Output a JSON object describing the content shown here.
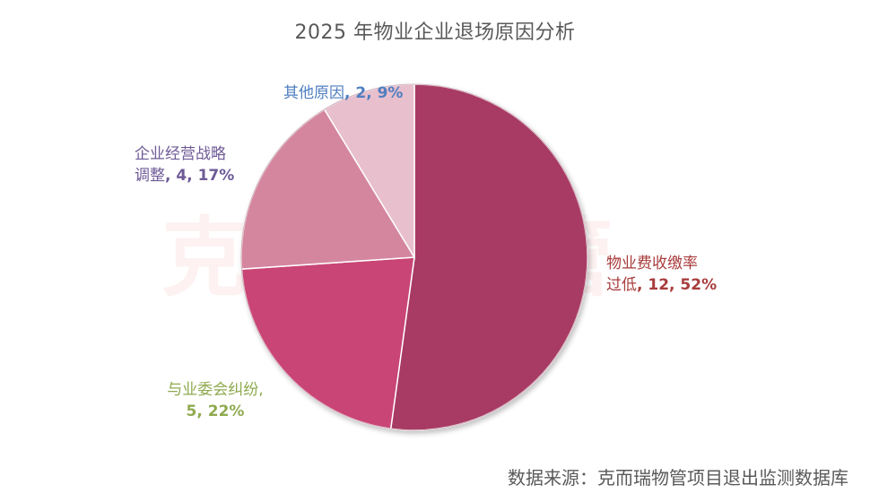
{
  "chart_data": {
    "type": "pie",
    "title": "2025 年物业企业退场原因分析",
    "source": "数据来源：克而瑞物管项目退出监测数据库",
    "watermark": "克而瑞物管",
    "slices": [
      {
        "label_line1": "物业费收缴率",
        "label_line2_text": "过低",
        "value_text": ", 12, 52%",
        "value": 12,
        "percent": 52,
        "color": "#A83A63",
        "label_color": "#A93C3C"
      },
      {
        "label_line1": "与业委会纠纷,",
        "label_line2_text": "",
        "value_text": "5, 22%",
        "value": 5,
        "percent": 22,
        "color": "#C94576",
        "label_color": "#8FAA4F"
      },
      {
        "label_line1": "企业经营战略",
        "label_line2_text": "调整",
        "value_text": ", 4, 17%",
        "value": 4,
        "percent": 17,
        "color": "#D5869F",
        "label_color": "#6E5A96"
      },
      {
        "label_line1": "其他原因",
        "label_line2_text": "",
        "value_text": ", 2, 9%",
        "value": 2,
        "percent": 9,
        "color": "#E8BFCD",
        "label_color": "#4F7FC0"
      }
    ]
  }
}
